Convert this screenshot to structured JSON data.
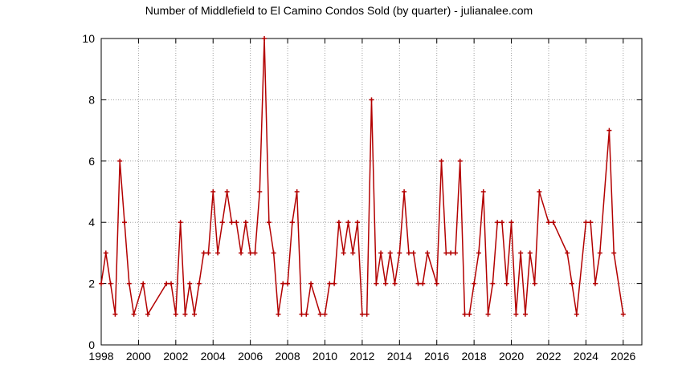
{
  "chart_data": {
    "type": "line",
    "title": "Number of Middlefield to El Camino Condos Sold (by quarter) - julianalee.com",
    "xlabel": "",
    "ylabel": "",
    "xlim": [
      1998,
      2027
    ],
    "ylim": [
      0,
      10
    ],
    "x_ticks": [
      "1998",
      "2000",
      "2002",
      "2004",
      "2006",
      "2008",
      "2010",
      "2012",
      "2014",
      "2016",
      "2018",
      "2020",
      "2022",
      "2024",
      "2026"
    ],
    "y_ticks": [
      "0",
      "2",
      "4",
      "6",
      "8",
      "10"
    ],
    "grid": true,
    "line_color": "#b30000",
    "series": [
      {
        "x": [
          1998.0,
          1998.25,
          1998.5,
          1998.75,
          1999.0,
          1999.25,
          1999.5,
          1999.75,
          2000.25,
          2000.5,
          2001.5,
          2001.75,
          2002.0,
          2002.25,
          2002.5,
          2002.75,
          2003.0,
          2003.25,
          2003.5,
          2003.75,
          2004.0,
          2004.25,
          2004.5,
          2004.75,
          2005.0,
          2005.25,
          2005.5,
          2005.75,
          2006.0,
          2006.25,
          2006.5,
          2006.75,
          2007.0,
          2007.25,
          2007.5,
          2007.75,
          2008.0,
          2008.25,
          2008.5,
          2008.75,
          2009.0,
          2009.25,
          2009.75,
          2010.0,
          2010.25,
          2010.5,
          2010.75,
          2011.0,
          2011.25,
          2011.5,
          2011.75,
          2012.0,
          2012.25,
          2012.5,
          2012.75,
          2013.0,
          2013.25,
          2013.5,
          2013.75,
          2014.0,
          2014.25,
          2014.5,
          2014.75,
          2015.0,
          2015.25,
          2015.5,
          2016.0,
          2016.25,
          2016.5,
          2016.75,
          2017.0,
          2017.25,
          2017.5,
          2017.75,
          2018.0,
          2018.25,
          2018.5,
          2018.75,
          2019.0,
          2019.25,
          2019.5,
          2019.75,
          2020.0,
          2020.25,
          2020.5,
          2020.75,
          2021.0,
          2021.25,
          2021.5,
          2022.0,
          2022.25,
          2023.0,
          2023.25,
          2023.5,
          2024.0,
          2024.25,
          2024.5,
          2024.75,
          2025.25,
          2025.5,
          2026.0
        ],
        "y": [
          2,
          3,
          2,
          1,
          6,
          4,
          2,
          1,
          2,
          1,
          2,
          2,
          1,
          4,
          1,
          2,
          1,
          2,
          3,
          3,
          5,
          3,
          4,
          5,
          4,
          4,
          3,
          4,
          3,
          3,
          5,
          10,
          4,
          3,
          1,
          2,
          2,
          4,
          5,
          1,
          1,
          2,
          1,
          1,
          2,
          2,
          4,
          3,
          4,
          3,
          4,
          1,
          1,
          8,
          2,
          3,
          2,
          3,
          2,
          3,
          5,
          3,
          3,
          2,
          2,
          3,
          2,
          6,
          3,
          3,
          3,
          6,
          1,
          1,
          2,
          3,
          5,
          1,
          2,
          4,
          4,
          2,
          4,
          1,
          3,
          1,
          3,
          2,
          5,
          4,
          4,
          3,
          2,
          1,
          4,
          4,
          2,
          3,
          7,
          3,
          1
        ]
      }
    ]
  }
}
